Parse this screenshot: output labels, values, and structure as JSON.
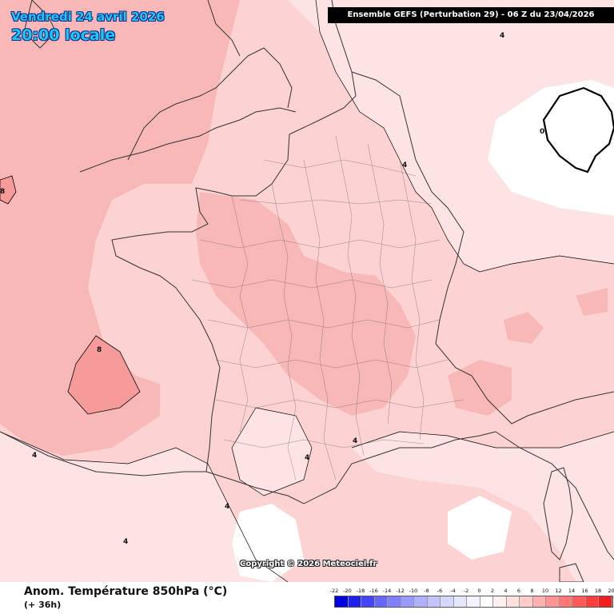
{
  "title": {
    "date_line": "Vendredi 24 avril 2026",
    "time_line": "20:00 locale"
  },
  "header": {
    "model_info": "Ensemble GEFS  (Perturbation 29)  -  06 Z du 23/04/2026"
  },
  "footer": {
    "variable_title": "Anom. Température 850hPa (°C)",
    "lead_time": "(+ 36h)"
  },
  "copyright": "Copyright © 2026 Meteociel.fr",
  "legend_scale": {
    "labels": [
      "-22",
      "-20",
      "-18",
      "-16",
      "-14",
      "-12",
      "-10",
      "-8",
      "-6",
      "-4",
      "-2",
      "0",
      "2",
      "4",
      "6",
      "8",
      "10",
      "12",
      "14",
      "16",
      "18",
      "20"
    ],
    "colors": [
      "#0000e0",
      "#2020f0",
      "#4444f8",
      "#6666fa",
      "#8080fc",
      "#9a9afc",
      "#b0b0fd",
      "#c4c4fd",
      "#d6d6fe",
      "#e6e6ff",
      "#f4f4ff",
      "#ffffff",
      "#fff0f0",
      "#ffe0e0",
      "#ffcccc",
      "#ffb0b0",
      "#ff9494",
      "#ff7878",
      "#ff5a5a",
      "#ff3c3c",
      "#f41e1e"
    ]
  },
  "contour_labels": [
    "0",
    "4",
    "4",
    "4",
    "4",
    "4",
    "4",
    "4",
    "8",
    "8"
  ],
  "colors": {
    "anomaly_2_4": "#fde3e3",
    "anomaly_4_6": "#fcd2d2",
    "anomaly_6_8": "#f9b8b8",
    "anomaly_8_10": "#f79a9a",
    "contour": "#000000",
    "borders": "#333333"
  }
}
